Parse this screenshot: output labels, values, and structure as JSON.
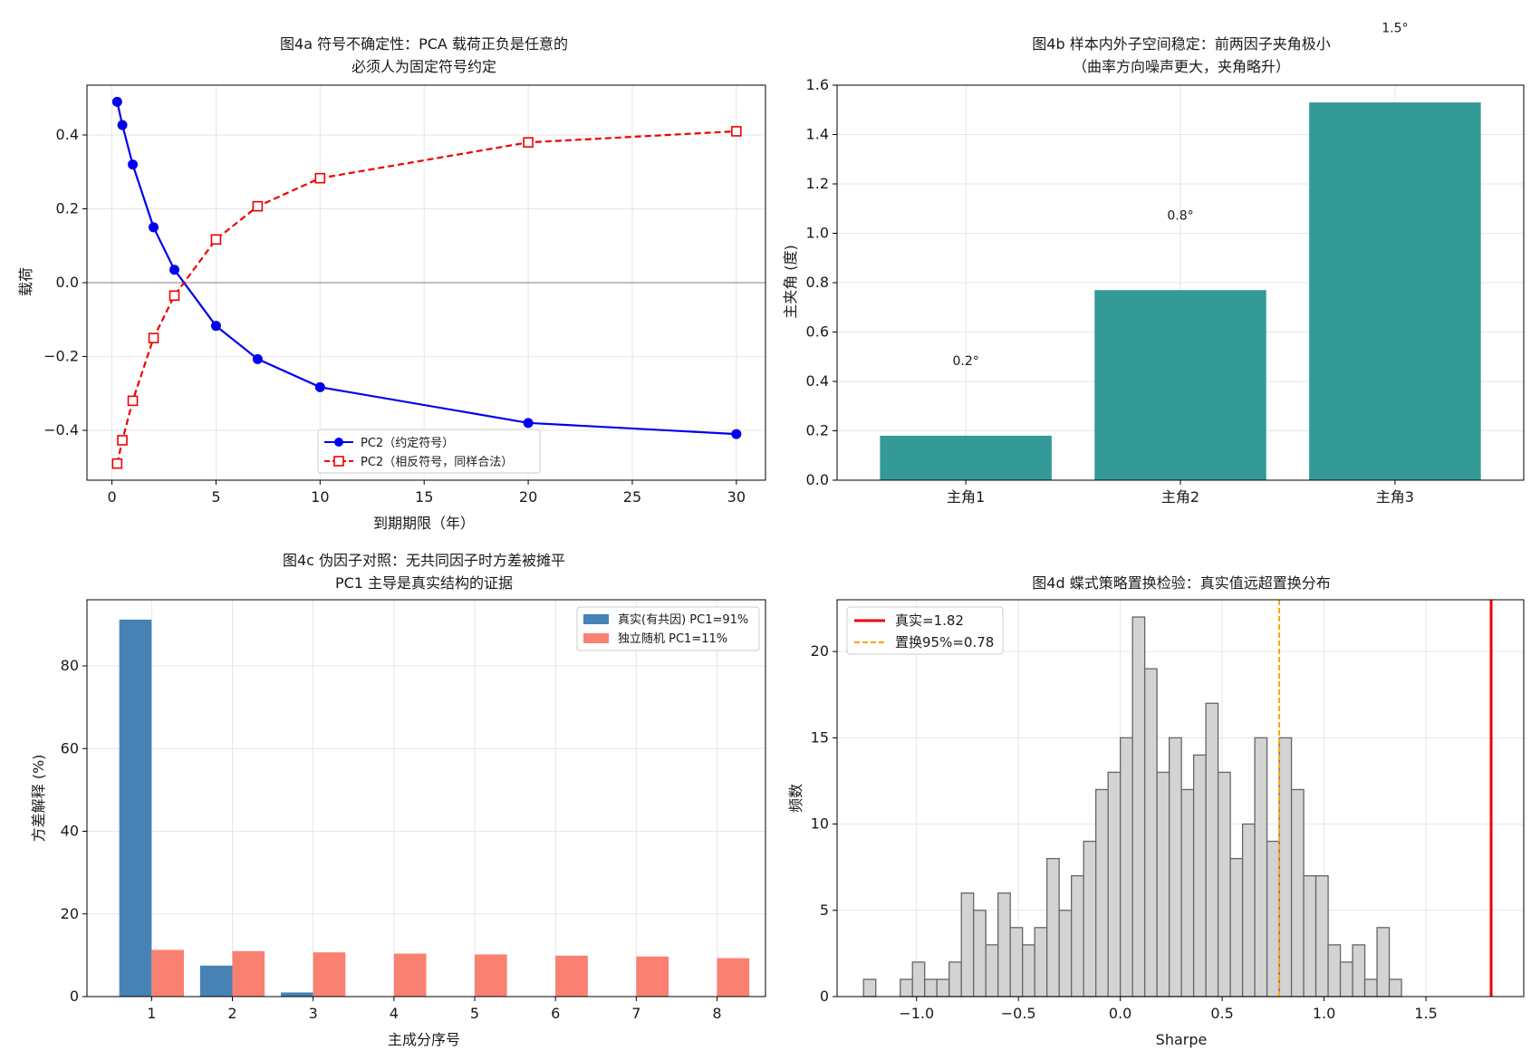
{
  "chart_data": [
    {
      "id": "a",
      "type": "line",
      "title_lines": [
        "图4a  符号不确定性：PCA 载荷正负是任意的",
        "必须人为固定符号约定"
      ],
      "xlabel": "到期期限（年）",
      "ylabel": "载荷",
      "xlim": [
        -1.2,
        31.4
      ],
      "ylim": [
        -0.535,
        0.535
      ],
      "xticks": [
        0,
        5,
        10,
        15,
        20,
        25,
        30
      ],
      "yticks": [
        -0.4,
        -0.2,
        0.0,
        0.2,
        0.4
      ],
      "ytick_labels": [
        "−0.4",
        "−0.2",
        "0.0",
        "0.2",
        "0.4"
      ],
      "grid": true,
      "legend_position": "lower-center",
      "series": [
        {
          "name": "PC2（约定符号）",
          "color": "#0000ee",
          "style": "solid",
          "marker": "circle",
          "x": [
            0.25,
            0.5,
            1,
            2,
            3,
            5,
            7,
            10,
            20,
            30
          ],
          "y": [
            0.49,
            0.427,
            0.32,
            0.15,
            0.035,
            -0.117,
            -0.207,
            -0.283,
            -0.38,
            -0.41
          ]
        },
        {
          "name": "PC2（相反符号，同样合法）",
          "color": "#ee0000",
          "style": "dashed",
          "marker": "square-open",
          "x": [
            0.25,
            0.5,
            1,
            2,
            3,
            5,
            7,
            10,
            20,
            30
          ],
          "y": [
            -0.49,
            -0.427,
            -0.32,
            -0.15,
            -0.035,
            0.117,
            0.207,
            0.283,
            0.38,
            0.41
          ]
        }
      ]
    },
    {
      "id": "b",
      "type": "bar",
      "title_lines": [
        "图4b  样本内外子空间稳定：前两因子夹角极小",
        "（曲率方向噪声更大，夹角略升）"
      ],
      "xlabel": "",
      "ylabel": "主夹角 (度)",
      "ylim": [
        0,
        1.6
      ],
      "yticks": [
        0.0,
        0.2,
        0.4,
        0.6,
        0.8,
        1.0,
        1.2,
        1.4,
        1.6
      ],
      "ytick_labels": [
        "0.0",
        "0.2",
        "0.4",
        "0.6",
        "0.8",
        "1.0",
        "1.2",
        "1.4",
        "1.6"
      ],
      "categories": [
        "主角1",
        "主角2",
        "主角3"
      ],
      "values": [
        0.18,
        0.77,
        1.53
      ],
      "value_labels": [
        "0.2°",
        "0.8°",
        "1.5°"
      ],
      "color": "#339a98",
      "grid": true
    },
    {
      "id": "c",
      "type": "bar",
      "title_lines": [
        "图4c  伪因子对照：无共同因子时方差被摊平",
        "PC1 主导是真实结构的证据"
      ],
      "xlabel": "主成分序号",
      "ylabel": "方差解释 (%)",
      "ylim": [
        0,
        96
      ],
      "yticks": [
        0,
        20,
        40,
        60,
        80
      ],
      "ytick_labels": [
        "0",
        "20",
        "40",
        "60",
        "80"
      ],
      "categories": [
        "1",
        "2",
        "3",
        "4",
        "5",
        "6",
        "7",
        "8"
      ],
      "legend_position": "top-right",
      "grid": true,
      "series": [
        {
          "name": "真实(有共因) PC1=91%",
          "color": "#4682b4",
          "values": [
            91.2,
            7.5,
            1.0,
            0,
            0,
            0,
            0,
            0
          ]
        },
        {
          "name": "独立随机 PC1=11%",
          "color": "#fa8072",
          "values": [
            11.3,
            11.0,
            10.7,
            10.4,
            10.2,
            9.9,
            9.7,
            9.3
          ]
        }
      ]
    },
    {
      "id": "d",
      "type": "histogram",
      "title_lines": [
        "图4d  蝶式策略置换检验：真实值远超置换分布"
      ],
      "xlabel": "Sharpe",
      "ylabel": "频数",
      "xlim": [
        -1.39,
        1.98
      ],
      "ylim": [
        0,
        23
      ],
      "xticks": [
        -1.0,
        -0.5,
        0.0,
        0.5,
        1.0,
        1.5
      ],
      "xtick_labels": [
        "−1.0",
        "−0.5",
        "0.0",
        "0.5",
        "1.0",
        "1.5"
      ],
      "yticks": [
        0,
        5,
        10,
        15,
        20
      ],
      "ytick_labels": [
        "0",
        "5",
        "10",
        "15",
        "20"
      ],
      "bin_start": -1.26,
      "bin_width": 0.06,
      "counts": [
        1,
        0,
        0,
        1,
        2,
        1,
        1,
        2,
        6,
        5,
        3,
        6,
        4,
        3,
        4,
        8,
        5,
        7,
        9,
        12,
        13,
        15,
        22,
        19,
        13,
        15,
        12,
        14,
        17,
        13,
        8,
        10,
        15,
        9,
        15,
        12,
        7,
        7,
        3,
        2,
        3,
        1,
        4,
        1
      ],
      "bar_color": "#d3d3d3",
      "bar_edge": "#666666",
      "grid": true,
      "legend_position": "top-left",
      "vlines": [
        {
          "name": "真实=1.82",
          "x": 1.82,
          "color": "#ee0000",
          "style": "solid"
        },
        {
          "name": "置换95%=0.78",
          "x": 0.78,
          "color": "#ffa500",
          "style": "dashed"
        }
      ]
    }
  ]
}
